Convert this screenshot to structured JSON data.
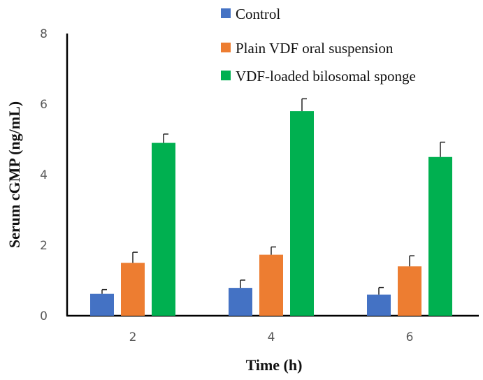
{
  "chart_data": {
    "type": "bar",
    "title": "",
    "xlabel": "Time (h)",
    "ylabel": "Serum cGMP (ng/mL)",
    "categories": [
      "2",
      "4",
      "6"
    ],
    "ylim": [
      0,
      8
    ],
    "yticks": [
      "0",
      "2",
      "4",
      "6",
      "8"
    ],
    "legend_position": "top-right",
    "grid": false,
    "series": [
      {
        "name": "Control",
        "color": "#4472C4",
        "values": [
          0.62,
          0.79,
          0.6
        ],
        "errors": [
          0.12,
          0.22,
          0.2
        ]
      },
      {
        "name": "Plain VDF oral suspension",
        "color": "#ED7D31",
        "values": [
          1.5,
          1.73,
          1.4
        ],
        "errors": [
          0.3,
          0.22,
          0.3
        ]
      },
      {
        "name": "VDF-loaded bilosomal sponge",
        "color": "#00B050",
        "values": [
          4.9,
          5.8,
          4.5
        ],
        "errors": [
          0.25,
          0.35,
          0.42
        ]
      }
    ]
  }
}
